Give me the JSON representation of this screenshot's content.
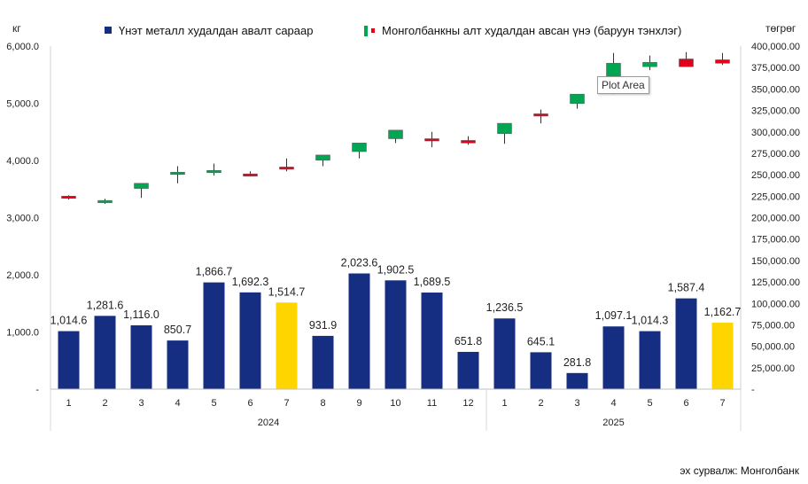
{
  "chart_data": {
    "type": "bar+candlestick",
    "left_axis_unit": "кг",
    "right_axis_unit": "төгрөг",
    "left_ticks": [
      "6,000.0",
      "5,000.0",
      "4,000.0",
      "3,000.0",
      "2,000.0",
      "1,000.0",
      "-"
    ],
    "right_ticks": [
      "400,000.00",
      "375,000.00",
      "350,000.00",
      "325,000.00",
      "300,000.00",
      "275,000.00",
      "250,000.00",
      "225,000.00",
      "200,000.00",
      "175,000.00",
      "150,000.00",
      "125,000.00",
      "100,000.00",
      "75,000.00",
      "50,000.00",
      "25,000.00",
      "-"
    ],
    "ylim_left": [
      0,
      6000
    ],
    "ylim_right": [
      0,
      400000
    ],
    "grid": false,
    "legend_position": "top",
    "series": [
      {
        "name": "Үнэт металл худалдан авалт сараар",
        "type": "bar",
        "axis": "left",
        "color": "#152E82",
        "highlight_color": "#FFD500"
      },
      {
        "name": "Монголбанкны алт худалдан авсан үнэ (баруун тэнхлэг)",
        "type": "candlestick",
        "axis": "right",
        "up_color": "#00A651",
        "down_color": "#E2001A"
      }
    ],
    "points": [
      {
        "month": "1",
        "year": "2024",
        "bar": 1014.6,
        "label": "1,014.6",
        "highlight": false,
        "candle": {
          "open": 225000,
          "close": 223000,
          "high": 226000,
          "low": 221000
        }
      },
      {
        "month": "2",
        "year": "2024",
        "bar": 1281.6,
        "label": "1,281.6",
        "highlight": false,
        "candle": {
          "open": 218000,
          "close": 220000,
          "high": 222000,
          "low": 216000
        }
      },
      {
        "month": "3",
        "year": "2024",
        "bar": 1116.0,
        "label": "1,116.0",
        "highlight": false,
        "candle": {
          "open": 234000,
          "close": 240000,
          "high": 240000,
          "low": 223000
        }
      },
      {
        "month": "4",
        "year": "2024",
        "bar": 850.7,
        "label": "850.7",
        "highlight": false,
        "candle": {
          "open": 251000,
          "close": 253000,
          "high": 260000,
          "low": 240000
        }
      },
      {
        "month": "5",
        "year": "2024",
        "bar": 1866.7,
        "label": "1,866.7",
        "highlight": false,
        "candle": {
          "open": 253000,
          "close": 255000,
          "high": 263000,
          "low": 249000
        }
      },
      {
        "month": "6",
        "year": "2024",
        "bar": 1692.3,
        "label": "1,692.3",
        "highlight": false,
        "candle": {
          "open": 251000,
          "close": 250000,
          "high": 254000,
          "low": 248000
        }
      },
      {
        "month": "7",
        "year": "2024",
        "bar": 1514.7,
        "label": "1,514.7",
        "highlight": true,
        "candle": {
          "open": 259000,
          "close": 257000,
          "high": 269000,
          "low": 254000
        }
      },
      {
        "month": "8",
        "year": "2024",
        "bar": 931.9,
        "label": "931.9",
        "highlight": false,
        "candle": {
          "open": 267000,
          "close": 273000,
          "high": 273000,
          "low": 260000
        }
      },
      {
        "month": "9",
        "year": "2024",
        "bar": 2023.6,
        "label": "2,023.6",
        "highlight": false,
        "candle": {
          "open": 277000,
          "close": 287000,
          "high": 287000,
          "low": 269000
        }
      },
      {
        "month": "10",
        "year": "2024",
        "bar": 1902.5,
        "label": "1,902.5",
        "highlight": false,
        "candle": {
          "open": 292000,
          "close": 302000,
          "high": 302000,
          "low": 287000
        }
      },
      {
        "month": "11",
        "year": "2024",
        "bar": 1689.5,
        "label": "1,689.5",
        "highlight": false,
        "candle": {
          "open": 292000,
          "close": 290000,
          "high": 300000,
          "low": 282000
        }
      },
      {
        "month": "12",
        "year": "2024",
        "bar": 651.8,
        "label": "651.8",
        "highlight": false,
        "candle": {
          "open": 290000,
          "close": 287000,
          "high": 295000,
          "low": 285000
        }
      },
      {
        "month": "1",
        "year": "2025",
        "bar": 1236.5,
        "label": "1,236.5",
        "highlight": false,
        "candle": {
          "open": 298000,
          "close": 310000,
          "high": 310000,
          "low": 286000
        }
      },
      {
        "month": "2",
        "year": "2025",
        "bar": 645.1,
        "label": "645.1",
        "highlight": false,
        "candle": {
          "open": 321000,
          "close": 319000,
          "high": 326000,
          "low": 310000
        }
      },
      {
        "month": "3",
        "year": "2025",
        "bar": 281.8,
        "label": "281.8",
        "highlight": false,
        "candle": {
          "open": 333000,
          "close": 344000,
          "high": 344000,
          "low": 327000
        }
      },
      {
        "month": "4",
        "year": "2025",
        "bar": 1097.1,
        "label": "1,097.1",
        "highlight": false,
        "candle": {
          "open": 354000,
          "close": 380000,
          "high": 392000,
          "low": 344000
        }
      },
      {
        "month": "5",
        "year": "2025",
        "bar": 1014.3,
        "label": "1,014.3",
        "highlight": false,
        "candle": {
          "open": 376000,
          "close": 381000,
          "high": 389000,
          "low": 372000
        }
      },
      {
        "month": "6",
        "year": "2025",
        "bar": 1587.4,
        "label": "1,587.4",
        "highlight": false,
        "candle": {
          "open": 385000,
          "close": 376000,
          "high": 393000,
          "low": 376000
        }
      },
      {
        "month": "7",
        "year": "2025",
        "bar": 1162.7,
        "label": "1,162.7",
        "highlight": true,
        "candle": {
          "open": 384000,
          "close": 380000,
          "high": 392000,
          "low": 378000
        }
      }
    ],
    "years": [
      {
        "label": "2024",
        "months": 12
      },
      {
        "label": "2025",
        "months": 7
      }
    ]
  },
  "tooltip": "Plot Area",
  "source": "эх сурвалж: Монголбанк"
}
